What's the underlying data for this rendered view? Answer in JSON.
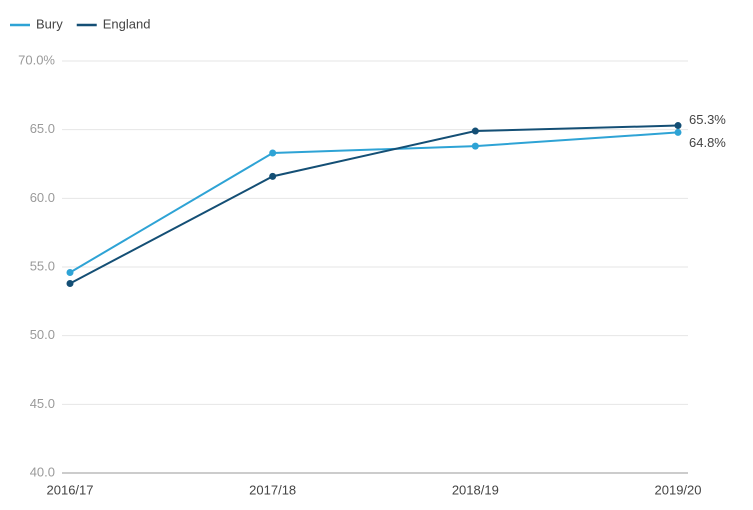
{
  "chart_data": {
    "type": "line",
    "categories": [
      "2016/17",
      "2017/18",
      "2018/19",
      "2019/20"
    ],
    "series": [
      {
        "name": "Bury",
        "color": "#2ea3d5",
        "values": [
          54.6,
          63.3,
          63.8,
          64.8
        ],
        "value_labels": [
          null,
          null,
          null,
          "64.8%"
        ]
      },
      {
        "name": "England",
        "color": "#144f75",
        "values": [
          53.8,
          61.6,
          64.9,
          65.3
        ],
        "value_labels": [
          null,
          null,
          null,
          "65.3%"
        ]
      }
    ],
    "ylim": [
      40,
      70
    ],
    "yticks": [
      {
        "value": 40,
        "label": "40.0"
      },
      {
        "value": 45,
        "label": "45.0"
      },
      {
        "value": 50,
        "label": "50.0"
      },
      {
        "value": 55,
        "label": "55.0"
      },
      {
        "value": 60,
        "label": "60.0"
      },
      {
        "value": 65,
        "label": "65.0"
      },
      {
        "value": 70,
        "label": "70.0%"
      }
    ],
    "grid": true,
    "legend": "top-left"
  }
}
